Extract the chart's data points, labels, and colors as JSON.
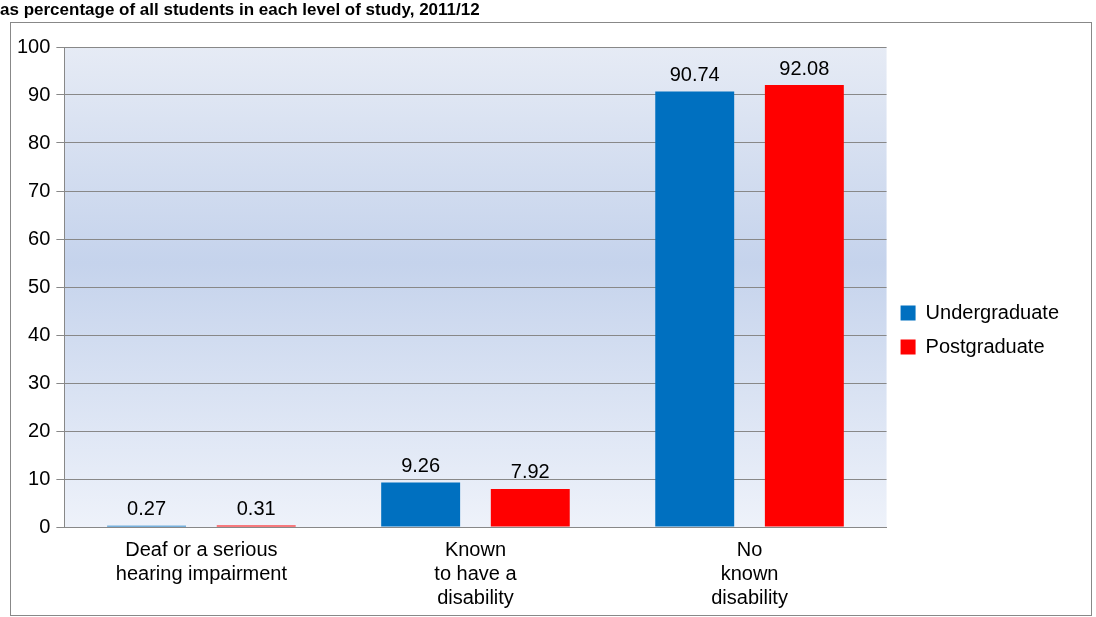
{
  "chart_data": {
    "type": "bar",
    "title": "as percentage of all students in each level of study, 2011/12",
    "categories": [
      "Deaf or a serious\nhearing impairment",
      "Known\nto have a\ndisability",
      "No\nknown\ndisability"
    ],
    "series": [
      {
        "name": "Undergraduate",
        "color": "#0070c0",
        "values": [
          0.27,
          9.26,
          90.74
        ]
      },
      {
        "name": "Postgraduate",
        "color": "#ff0000",
        "values": [
          0.31,
          7.92,
          92.08
        ]
      }
    ],
    "ylim": [
      0,
      100
    ],
    "yticks": [
      0,
      10,
      20,
      30,
      40,
      50,
      60,
      70,
      80,
      90,
      100
    ],
    "grid": "y",
    "legend": "right",
    "data_labels": true
  }
}
